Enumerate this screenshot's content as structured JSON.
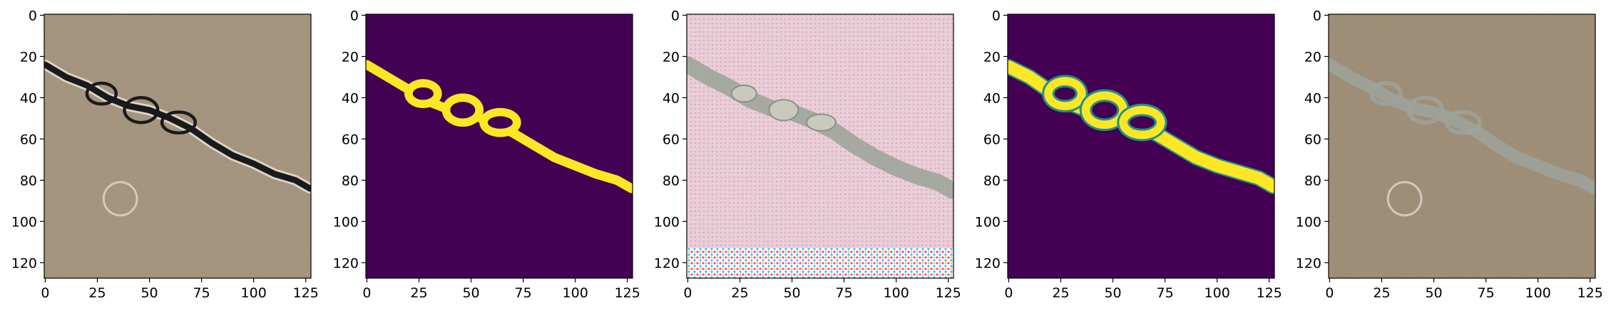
{
  "chart_data": [
    {
      "type": "image",
      "content": "crack-input-photo",
      "xlim": [
        0,
        127
      ],
      "ylim": [
        127,
        0
      ],
      "xticks": [
        0,
        25,
        50,
        75,
        100,
        125
      ],
      "yticks": [
        0,
        20,
        40,
        60,
        80,
        100,
        120
      ],
      "crack_path": [
        [
          0,
          24
        ],
        [
          10,
          30
        ],
        [
          20,
          34
        ],
        [
          30,
          40
        ],
        [
          40,
          44
        ],
        [
          50,
          46
        ],
        [
          60,
          50
        ],
        [
          70,
          55
        ],
        [
          80,
          62
        ],
        [
          90,
          68
        ],
        [
          100,
          72
        ],
        [
          110,
          77
        ],
        [
          120,
          80
        ],
        [
          127,
          84
        ]
      ],
      "colors": {
        "background": "#b09e87",
        "crack": "#1a1a1a",
        "crack_edge": "#e9e4dc"
      }
    },
    {
      "type": "image",
      "content": "ground-truth-mask",
      "xlim": [
        0,
        127
      ],
      "ylim": [
        127,
        0
      ],
      "xticks": [
        0,
        25,
        50,
        75,
        100,
        125
      ],
      "yticks": [
        0,
        20,
        40,
        60,
        80,
        100,
        120
      ],
      "crack_path": [
        [
          0,
          24
        ],
        [
          10,
          30
        ],
        [
          20,
          36
        ],
        [
          30,
          42
        ],
        [
          40,
          46
        ],
        [
          50,
          48
        ],
        [
          60,
          52
        ],
        [
          70,
          57
        ],
        [
          80,
          63
        ],
        [
          90,
          69
        ],
        [
          100,
          73
        ],
        [
          110,
          77
        ],
        [
          120,
          80
        ],
        [
          127,
          84
        ]
      ],
      "colors": {
        "background": "#440154",
        "mask": "#fde725"
      }
    },
    {
      "type": "image",
      "content": "generated-image",
      "xlim": [
        0,
        127
      ],
      "ylim": [
        127,
        0
      ],
      "xticks": [
        0,
        25,
        50,
        75,
        100,
        125
      ],
      "yticks": [
        0,
        20,
        40,
        60,
        80,
        100,
        120
      ],
      "crack_path": [
        [
          0,
          24
        ],
        [
          10,
          30
        ],
        [
          20,
          35
        ],
        [
          30,
          41
        ],
        [
          40,
          45
        ],
        [
          50,
          47
        ],
        [
          60,
          51
        ],
        [
          70,
          56
        ],
        [
          80,
          63
        ],
        [
          90,
          69
        ],
        [
          100,
          74
        ],
        [
          110,
          78
        ],
        [
          120,
          81
        ],
        [
          127,
          85
        ]
      ],
      "colors": {
        "background": "#f2d7e0",
        "crack": "#9fa59b"
      }
    },
    {
      "type": "image",
      "content": "predicted-mask",
      "xlim": [
        0,
        127
      ],
      "ylim": [
        127,
        0
      ],
      "xticks": [
        0,
        25,
        50,
        75,
        100,
        125
      ],
      "yticks": [
        0,
        20,
        40,
        60,
        80,
        100,
        120
      ],
      "crack_path": [
        [
          0,
          25
        ],
        [
          10,
          30
        ],
        [
          20,
          37
        ],
        [
          30,
          43
        ],
        [
          40,
          47
        ],
        [
          50,
          49
        ],
        [
          60,
          53
        ],
        [
          70,
          57
        ],
        [
          80,
          63
        ],
        [
          90,
          69
        ],
        [
          100,
          73
        ],
        [
          110,
          76
        ],
        [
          120,
          79
        ],
        [
          127,
          83
        ]
      ],
      "colors": {
        "background": "#440154",
        "mask": "#fde725",
        "edge": "#21918c"
      }
    },
    {
      "type": "image",
      "content": "overlay-image",
      "xlim": [
        0,
        127
      ],
      "ylim": [
        127,
        0
      ],
      "xticks": [
        0,
        25,
        50,
        75,
        100,
        125
      ],
      "yticks": [
        0,
        20,
        40,
        60,
        80,
        100,
        120
      ],
      "crack_path": [
        [
          0,
          24
        ],
        [
          10,
          30
        ],
        [
          20,
          35
        ],
        [
          30,
          41
        ],
        [
          40,
          45
        ],
        [
          50,
          47
        ],
        [
          60,
          51
        ],
        [
          70,
          56
        ],
        [
          80,
          63
        ],
        [
          90,
          69
        ],
        [
          100,
          73
        ],
        [
          110,
          77
        ],
        [
          120,
          80
        ],
        [
          127,
          84
        ]
      ],
      "colors": {
        "background": "#a99880",
        "crack": "#9ea39b"
      }
    }
  ]
}
